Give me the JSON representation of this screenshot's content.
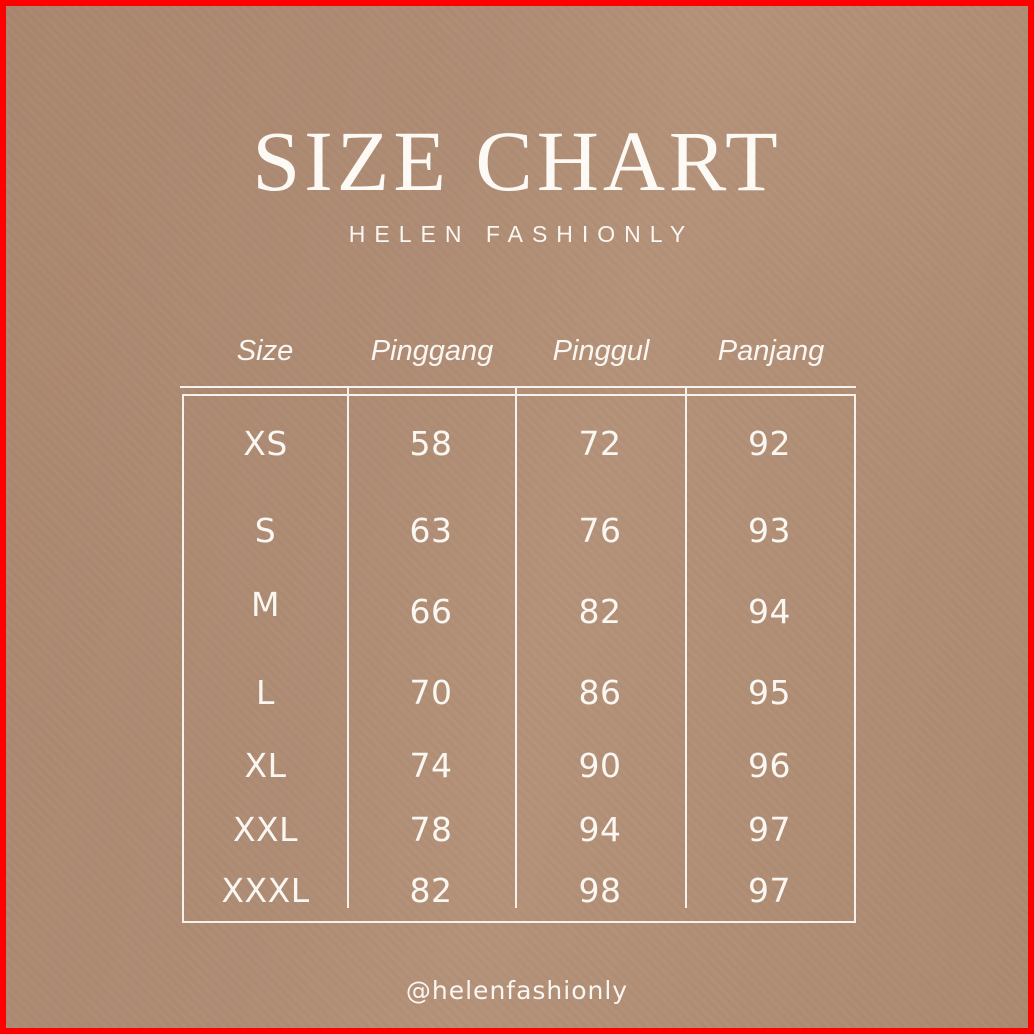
{
  "page": {
    "title": "SIZE CHART",
    "subtitle": "HELEN FASHIONLY",
    "footer_handle": "@helenfashionly"
  },
  "colors": {
    "frame": "#ff0000",
    "background": "#ae8b73",
    "text": "#faf6f1",
    "table_lines": "#f6f1ea"
  },
  "table": {
    "headers": [
      "Size",
      "Pinggang",
      "Pinggul",
      "Panjang"
    ],
    "rows": [
      {
        "size": "XS",
        "pinggang": "58",
        "pinggul": "72",
        "panjang": "92"
      },
      {
        "size": "S",
        "pinggang": "63",
        "pinggul": "76",
        "panjang": "93"
      },
      {
        "size": "M",
        "pinggang": "66",
        "pinggul": "82",
        "panjang": "94"
      },
      {
        "size": "L",
        "pinggang": "70",
        "pinggul": "86",
        "panjang": "95"
      },
      {
        "size": "XL",
        "pinggang": "74",
        "pinggul": "90",
        "panjang": "96"
      },
      {
        "size": "XXL",
        "pinggang": "78",
        "pinggul": "94",
        "panjang": "97"
      },
      {
        "size": "XXXL",
        "pinggang": "82",
        "pinggul": "98",
        "panjang": "97"
      }
    ]
  },
  "chart_data": {
    "type": "table",
    "title": "SIZE CHART",
    "subtitle": "HELEN FASHIONLY",
    "columns": [
      "Size",
      "Pinggang",
      "Pinggul",
      "Panjang"
    ],
    "rows": [
      [
        "XS",
        58,
        72,
        92
      ],
      [
        "S",
        63,
        76,
        93
      ],
      [
        "M",
        66,
        82,
        94
      ],
      [
        "L",
        70,
        86,
        95
      ],
      [
        "XL",
        74,
        90,
        96
      ],
      [
        "XXL",
        78,
        94,
        97
      ],
      [
        "XXXL",
        82,
        98,
        97
      ]
    ]
  }
}
